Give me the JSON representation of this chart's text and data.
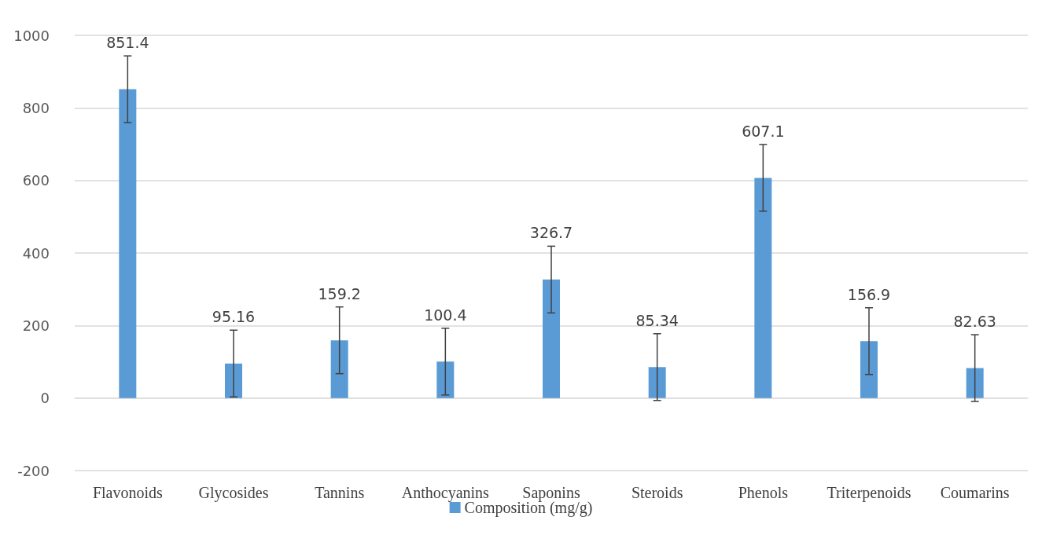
{
  "chart_data": {
    "type": "bar",
    "categories": [
      "Flavonoids",
      "Glycosides",
      "Tannins",
      "Anthocyanins",
      "Saponins",
      "Steroids",
      "Phenols",
      "Triterpenoids",
      "Coumarins"
    ],
    "series": [
      {
        "name": "Composition (mg/g)",
        "color": "#5b9bd5",
        "values": [
          851.4,
          95.16,
          159.2,
          100.4,
          326.7,
          85.34,
          607.1,
          156.9,
          82.63
        ],
        "errors": [
          92,
          92,
          92,
          92,
          92,
          92,
          92,
          92,
          92
        ]
      }
    ],
    "ylim": [
      -200,
      1000
    ],
    "yticks": [
      -200,
      0,
      200,
      400,
      600,
      800,
      1000
    ],
    "grid": "y",
    "legend": "bottom",
    "data_labels": true
  }
}
